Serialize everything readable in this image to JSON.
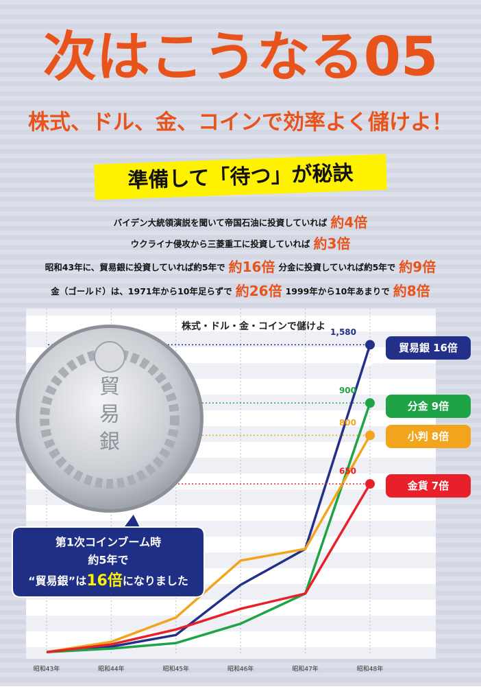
{
  "header": {
    "title": "次はこうなる05",
    "subtitle": "株式、ドル、金、コインで効率よく儲けよ！",
    "banner": "準備して「待つ」が秘訣"
  },
  "lines": [
    [
      {
        "text": "バイデン大統領演説を聞いて帝国石油に投資していれば",
        "emphasis": false
      },
      {
        "text": "約4倍",
        "emphasis": true
      }
    ],
    [
      {
        "text": "ウクライナ侵攻から三菱重工に投資していれば",
        "emphasis": false
      },
      {
        "text": "約3倍",
        "emphasis": true
      }
    ],
    [
      {
        "text": "昭和43年に、貿易銀に投資していれば約5年で",
        "emphasis": false
      },
      {
        "text": "約16倍",
        "emphasis": true
      },
      {
        "text": "分金に投資していれば約5年で",
        "emphasis": false
      },
      {
        "text": "約9倍",
        "emphasis": true
      }
    ],
    [
      {
        "text": "金（ゴールド）は、1971年から10年足らずで",
        "emphasis": false
      },
      {
        "text": "約26倍",
        "emphasis": true
      },
      {
        "text": "1999年から10年あまりで",
        "emphasis": false
      },
      {
        "text": "約8倍",
        "emphasis": true
      }
    ]
  ],
  "callout": {
    "lines": [
      "第1次コインブーム時",
      "約5年で"
    ],
    "prefix": "“貿易銀”は",
    "highlight": "16倍",
    "suffix": "になりました"
  },
  "chart_data": {
    "type": "line",
    "title": "株式・ドル・金・コインで儲けよ",
    "categories": [
      "昭和43年",
      "昭和44年",
      "昭和45年",
      "昭和46年",
      "昭和47年",
      "昭和48年"
    ],
    "ylim": [
      120,
      1670
    ],
    "axis_break": [
      1000,
      1500
    ],
    "series": [
      {
        "name": "貿易銀",
        "multiplier": "16倍",
        "color": "#23308a",
        "values": [
          130,
          147,
          183,
          338,
          449,
          1580
        ],
        "value_labels": [
          null,
          null,
          null,
          null,
          null,
          "1,580"
        ]
      },
      {
        "name": "分金",
        "multiplier": "9倍",
        "color": "#1fa347",
        "values": [
          130,
          141,
          158,
          218,
          311,
          900
        ]
      },
      {
        "name": "小判",
        "multiplier": "8倍",
        "color": "#f2a41c",
        "values": [
          130,
          162,
          237,
          413,
          449,
          800
        ]
      },
      {
        "name": "金貨",
        "multiplier": "7倍",
        "color": "#e8202a",
        "values": [
          130,
          154,
          200,
          264,
          311,
          650
        ]
      }
    ]
  }
}
